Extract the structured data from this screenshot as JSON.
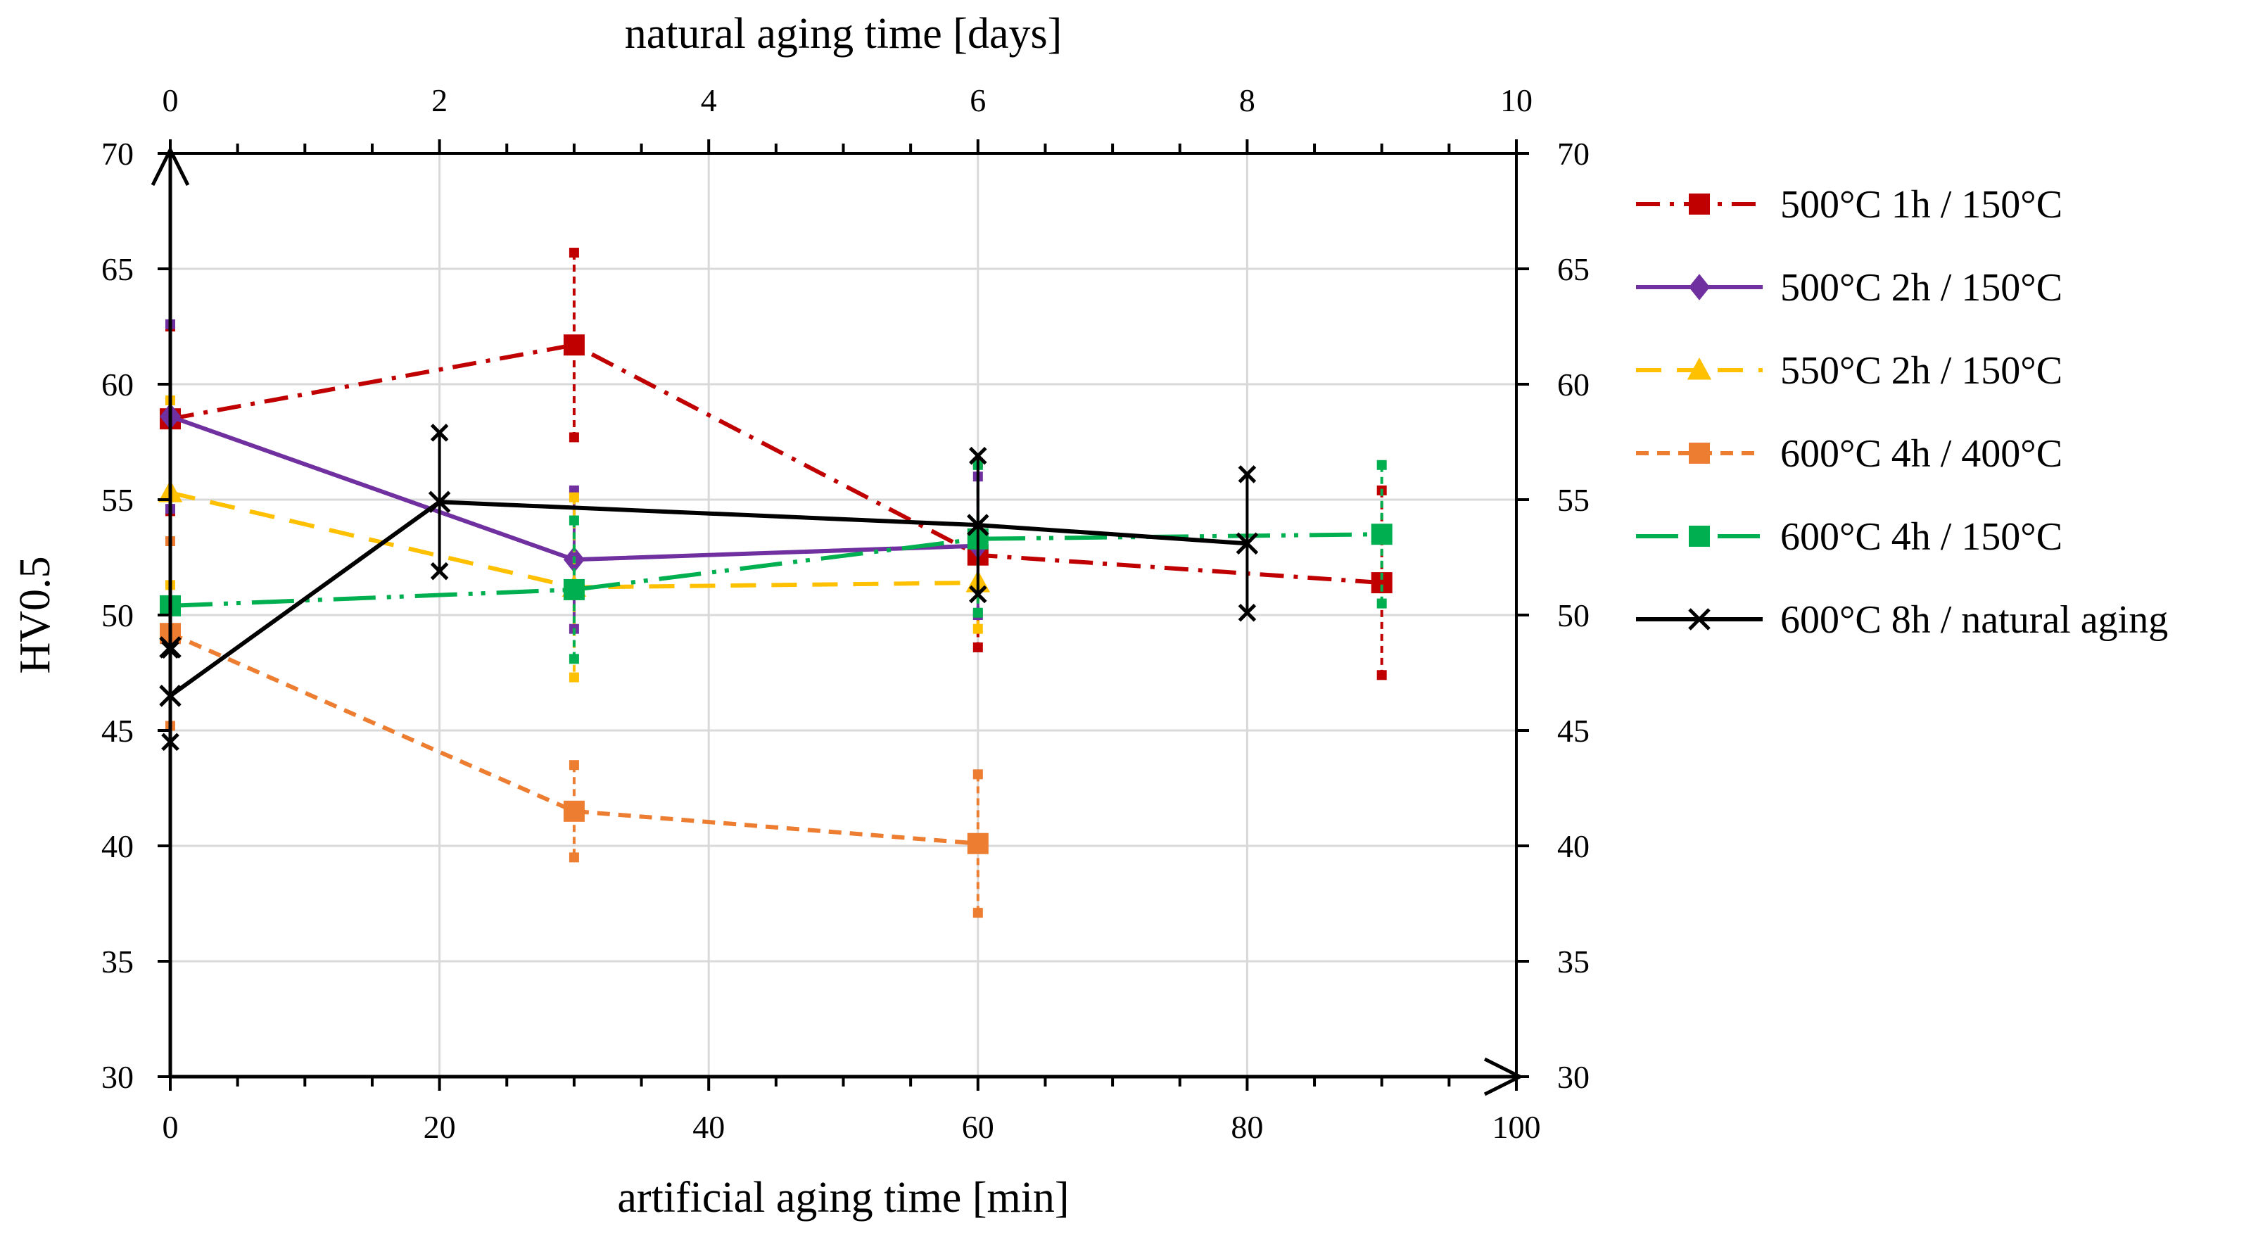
{
  "chart_data": {
    "type": "line",
    "title": "",
    "xlabel": "artificial aging time [min]",
    "x2label": "natural aging time [days]",
    "ylabel": "HV0.5",
    "xlim": [
      0,
      100
    ],
    "x2lim": [
      0,
      10
    ],
    "ylim": [
      30,
      70
    ],
    "xticks": [
      0,
      20,
      40,
      60,
      80,
      100
    ],
    "x2ticks": [
      0,
      2,
      4,
      6,
      8,
      10
    ],
    "yticks": [
      30,
      35,
      40,
      45,
      50,
      55,
      60,
      65,
      70
    ],
    "grid": true,
    "legend_position": "right",
    "series": [
      {
        "name": "500°C 1h / 150°C",
        "axis": "bottom",
        "color": "#C00000",
        "dash": "dashdot",
        "marker": "square",
        "x": [
          0,
          30,
          60,
          90
        ],
        "y": [
          58.5,
          61.7,
          52.6,
          51.4
        ],
        "err": [
          4.0,
          4.0,
          4.0,
          4.0
        ]
      },
      {
        "name": "500°C 2h / 150°C",
        "axis": "bottom",
        "color": "#7030A0",
        "dash": "solid",
        "marker": "diamond",
        "x": [
          0,
          30,
          60
        ],
        "y": [
          58.6,
          52.4,
          53.0
        ],
        "err": [
          4.0,
          3.0,
          3.0
        ]
      },
      {
        "name": "550°C 2h / 150°C",
        "axis": "bottom",
        "color": "#FFC000",
        "dash": "dash",
        "marker": "triangle",
        "x": [
          0,
          30,
          60
        ],
        "y": [
          55.3,
          51.2,
          51.4
        ],
        "err": [
          4.0,
          3.9,
          2.0
        ]
      },
      {
        "name": "600°C 4h / 400°C",
        "axis": "bottom",
        "color": "#ED7D31",
        "dash": "shortdash",
        "marker": "square",
        "x": [
          0,
          30,
          60
        ],
        "y": [
          49.2,
          41.5,
          40.1
        ],
        "err": [
          4.0,
          2.0,
          3.0
        ]
      },
      {
        "name": "600°C 4h / 150°C",
        "axis": "bottom",
        "color": "#00B050",
        "dash": "longdashdotdot",
        "marker": "square",
        "x": [
          0,
          30,
          60,
          90
        ],
        "y": [
          50.4,
          51.1,
          53.3,
          53.5
        ],
        "err": [
          0.0,
          3.0,
          3.2,
          3.0
        ]
      },
      {
        "name": "600°C 8h / natural aging",
        "axis": "top",
        "color": "#000000",
        "dash": "solid",
        "marker": "x",
        "x": [
          0,
          2,
          6,
          8
        ],
        "y": [
          46.5,
          54.9,
          53.9,
          53.1
        ],
        "err": [
          2.0,
          3.0,
          3.0,
          3.0
        ],
        "extra_points": [
          {
            "x": 0,
            "y": 48.6
          }
        ]
      }
    ]
  }
}
